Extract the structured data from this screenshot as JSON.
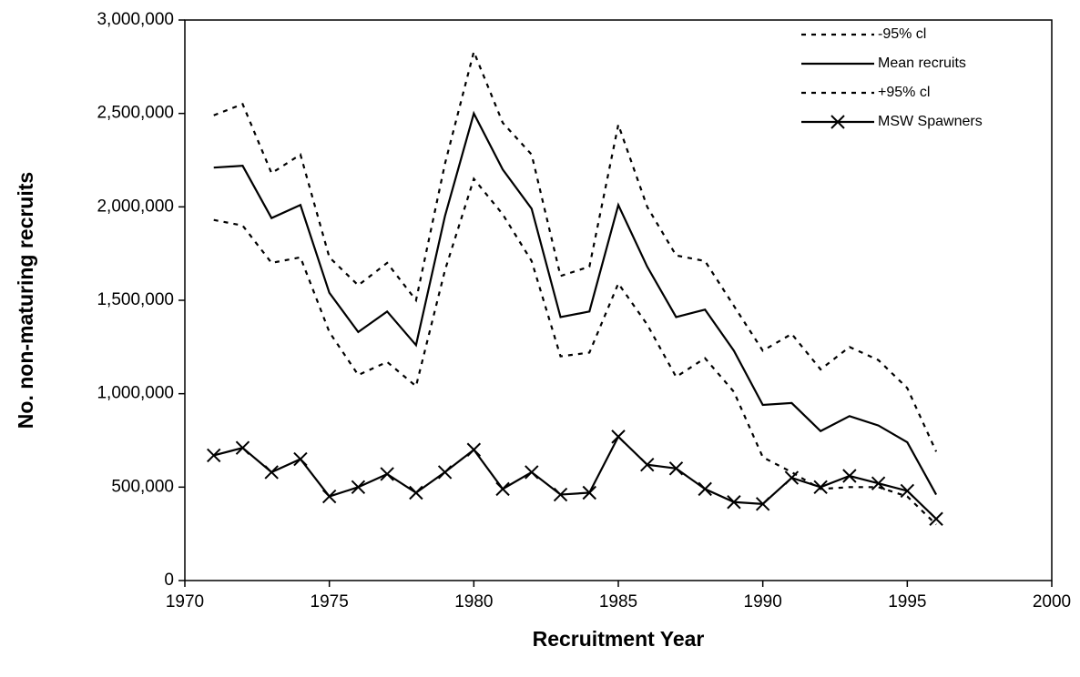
{
  "chart_data": {
    "type": "line",
    "x_label": "Recruitment Year",
    "y_label": "No. non-maturing recruits",
    "x": [
      1971,
      1972,
      1973,
      1974,
      1975,
      1976,
      1977,
      1978,
      1979,
      1980,
      1981,
      1982,
      1983,
      1984,
      1985,
      1986,
      1987,
      1988,
      1989,
      1990,
      1991,
      1992,
      1993,
      1994,
      1995,
      1996
    ],
    "series": [
      {
        "name": "-95% cl",
        "color": "#000000",
        "style": "dotted",
        "marker": "none",
        "values": [
          2490000,
          2550000,
          2180000,
          2280000,
          1730000,
          1580000,
          1700000,
          1500000,
          2230000,
          2830000,
          2450000,
          2280000,
          1630000,
          1680000,
          2440000,
          2000000,
          1740000,
          1710000,
          1470000,
          1230000,
          1320000,
          1130000,
          1250000,
          1180000,
          1030000,
          690000
        ]
      },
      {
        "name": "Mean recruits",
        "color": "#000000",
        "style": "solid",
        "marker": "none",
        "values": [
          2210000,
          2220000,
          1940000,
          2010000,
          1540000,
          1330000,
          1440000,
          1260000,
          1950000,
          2500000,
          2200000,
          1990000,
          1410000,
          1440000,
          2010000,
          1680000,
          1410000,
          1450000,
          1230000,
          940000,
          950000,
          800000,
          880000,
          830000,
          740000,
          460000
        ]
      },
      {
        "name": "+95% cl",
        "color": "#000000",
        "style": "dotted",
        "marker": "none",
        "values": [
          1930000,
          1900000,
          1700000,
          1730000,
          1330000,
          1100000,
          1170000,
          1040000,
          1660000,
          2150000,
          1960000,
          1710000,
          1200000,
          1220000,
          1590000,
          1370000,
          1090000,
          1190000,
          1010000,
          660000,
          580000,
          490000,
          500000,
          500000,
          450000,
          300000
        ]
      },
      {
        "name": "MSW Spawners",
        "color": "#000000",
        "style": "solid",
        "marker": "x",
        "values": [
          670000,
          710000,
          580000,
          650000,
          450000,
          500000,
          570000,
          470000,
          580000,
          700000,
          490000,
          580000,
          460000,
          470000,
          770000,
          620000,
          600000,
          490000,
          420000,
          410000,
          550000,
          500000,
          560000,
          520000,
          480000,
          330000
        ]
      }
    ],
    "xlim": [
      1970,
      2000
    ],
    "xticks": [
      1970,
      1975,
      1980,
      1985,
      1990,
      1995,
      2000
    ],
    "ylim": [
      0,
      3000000
    ],
    "yticks": [
      0,
      {
        "value": 500000,
        "label": "500,000"
      },
      {
        "value": 1000000,
        "label": "1,000,000"
      },
      {
        "value": 1500000,
        "label": "1,500,000"
      },
      {
        "value": 2000000,
        "label": "2,000,000"
      },
      {
        "value": 2500000,
        "label": "2,500,000"
      },
      {
        "value": 3000000,
        "label": "3,000,000"
      }
    ],
    "legend": "top-right"
  }
}
